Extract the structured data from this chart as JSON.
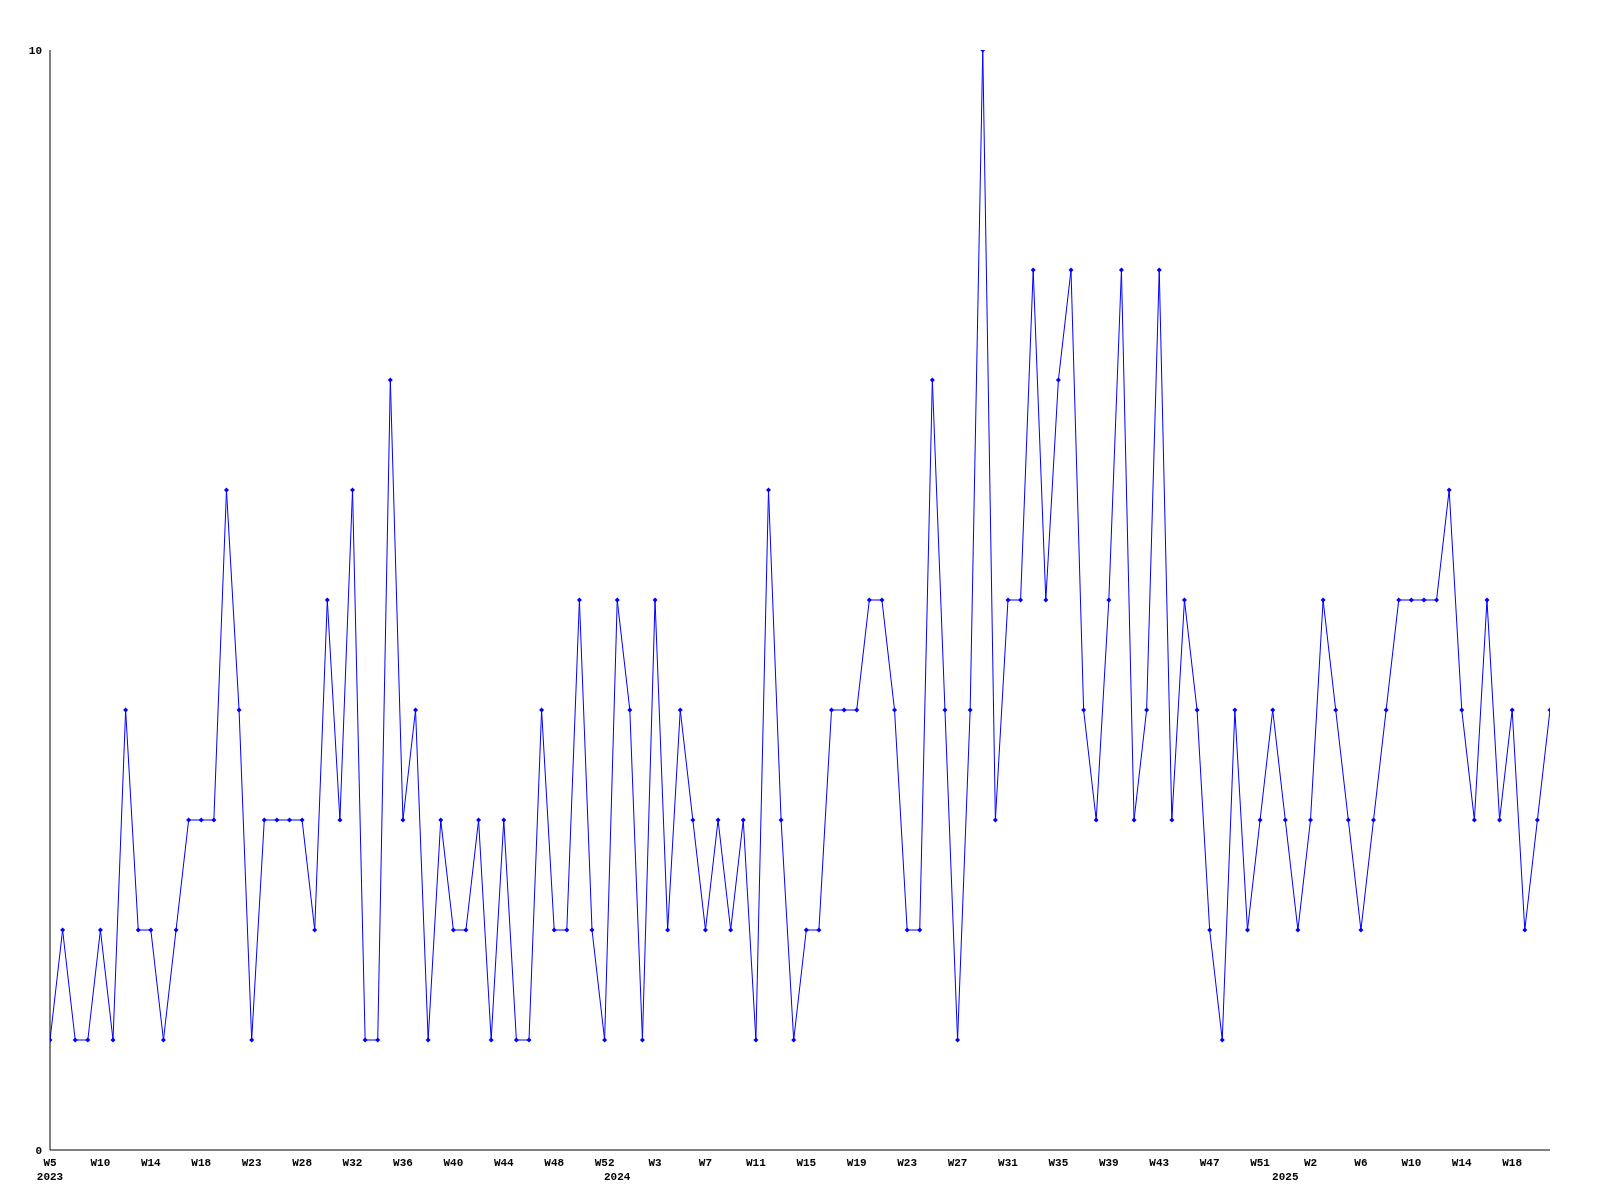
{
  "chart_data": {
    "type": "line",
    "categories": [
      "W5",
      null,
      null,
      null,
      "W10",
      null,
      null,
      null,
      "W14",
      null,
      null,
      null,
      "W18",
      null,
      null,
      null,
      "W23",
      null,
      null,
      null,
      "W28",
      null,
      null,
      null,
      "W32",
      null,
      null,
      null,
      "W36",
      null,
      null,
      null,
      "W40",
      null,
      null,
      null,
      "W44",
      null,
      null,
      null,
      "W48",
      null,
      null,
      null,
      "W52",
      null,
      null,
      null,
      "W3",
      null,
      null,
      null,
      "W7",
      null,
      null,
      null,
      "W11",
      null,
      null,
      null,
      "W15",
      null,
      null,
      null,
      "W19",
      null,
      null,
      null,
      "W23",
      null,
      null,
      null,
      "W27",
      null,
      null,
      null,
      "W31",
      null,
      null,
      null,
      "W35",
      null,
      null,
      null,
      "W39",
      null,
      null,
      null,
      "W43",
      null,
      null,
      null,
      "W47",
      null,
      null,
      null,
      "W51",
      null,
      null,
      null,
      "W2",
      null,
      null,
      null,
      "W6",
      null,
      null,
      null,
      "W10",
      null,
      null,
      null,
      "W14",
      null,
      null,
      null,
      "W18",
      null,
      null,
      null
    ],
    "series": [
      {
        "color": "#0000ff",
        "values": [
          1,
          2,
          1,
          1,
          2,
          1,
          4,
          2,
          2,
          1,
          2,
          3,
          3,
          3,
          6,
          4,
          1,
          3,
          3,
          3,
          3,
          2,
          5,
          3,
          6,
          1,
          1,
          7,
          3,
          4,
          1,
          3,
          2,
          2,
          3,
          1,
          3,
          1,
          1,
          4,
          2,
          2,
          5,
          2,
          1,
          5,
          4,
          1,
          5,
          2,
          4,
          3,
          2,
          3,
          2,
          3,
          1,
          6,
          3,
          1,
          2,
          2,
          4,
          4,
          4,
          5,
          5,
          4,
          2,
          2,
          7,
          4,
          1,
          4,
          10,
          3,
          5,
          5,
          8,
          5,
          7,
          8,
          4,
          3,
          5,
          8,
          3,
          4,
          8,
          3,
          5,
          4,
          2,
          1,
          4,
          2,
          3,
          4,
          3,
          2,
          3,
          5,
          4,
          3,
          2,
          3,
          4,
          5,
          5,
          5,
          5,
          6,
          4,
          3,
          5,
          3,
          4,
          2,
          3,
          4
        ]
      }
    ],
    "ylim": [
      0,
      10
    ],
    "yticks": [
      0,
      10
    ],
    "annotations": [
      "2023",
      "2024",
      "2025"
    ],
    "marker": "diamond",
    "line_style": "solid"
  }
}
